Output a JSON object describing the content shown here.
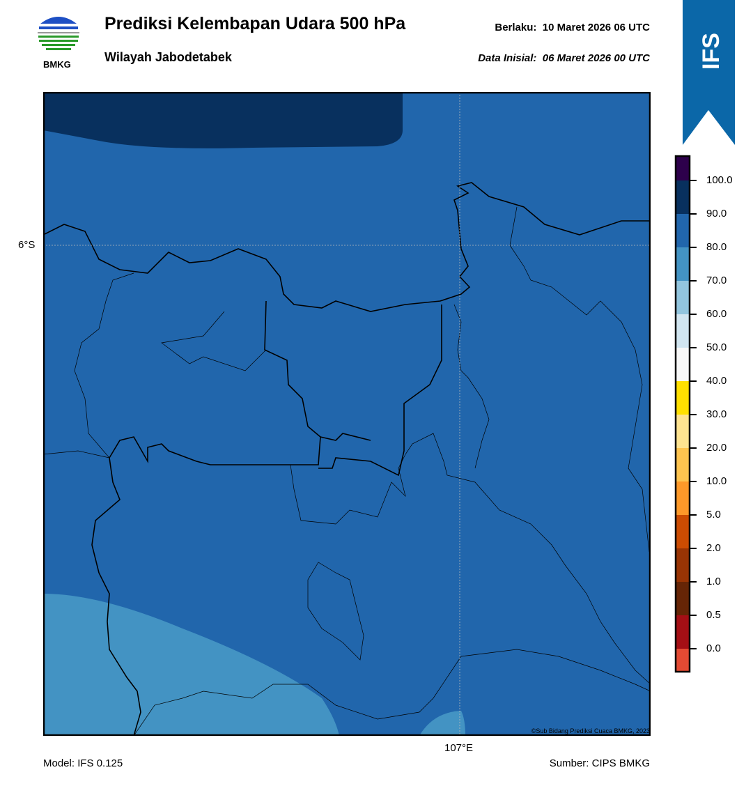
{
  "header": {
    "title": "Prediksi Kelembapan Udara 500 hPa",
    "subtitle": "Wilayah Jabodetabek",
    "valid_label": "Berlaku:",
    "valid_time": "10 Maret 2026 06 UTC",
    "init_label": "Data Inisial:",
    "init_time": "06 Maret 2026 00 UTC"
  },
  "logo": {
    "text": "BMKG"
  },
  "badge": {
    "text": "IFS",
    "color": "#0b67a8"
  },
  "map": {
    "lat_label": "6°S",
    "lon_label": "107°E",
    "copyright": "©Sub Bidang Prediksi Cuaca BMKG, 2023",
    "fill_colors": {
      "main": "#2166ac",
      "dark": "#08305e",
      "light": "#4393c3"
    }
  },
  "colorbar": {
    "ticks": [
      "100.0",
      "90.0",
      "80.0",
      "70.0",
      "60.0",
      "50.0",
      "40.0",
      "30.0",
      "20.0",
      "10.0",
      "5.0",
      "2.0",
      "1.0",
      "0.5",
      "0.0"
    ],
    "colors": [
      "#2d004b",
      "#08305e",
      "#2166ac",
      "#4393c3",
      "#92c5de",
      "#d1e5f0",
      "#f7f7f7",
      "#ffe000",
      "#fee390",
      "#fec44f",
      "#fe9929",
      "#cc4c02",
      "#993404",
      "#662506",
      "#a50f15",
      "#e34a33"
    ]
  },
  "footer": {
    "model": "Model: IFS 0.125",
    "source": "Sumber: CIPS BMKG"
  }
}
